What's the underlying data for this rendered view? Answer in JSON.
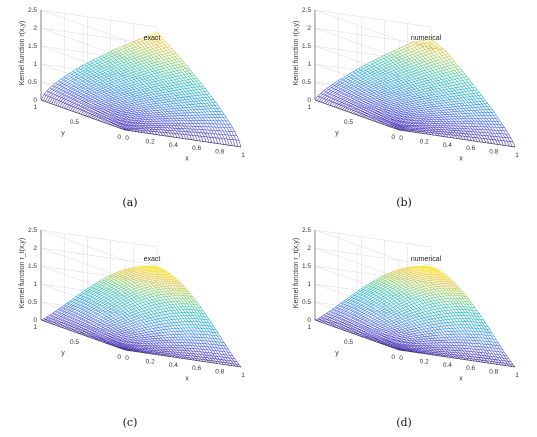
{
  "chart_data": [
    {
      "type": "surface",
      "caption": "(a)",
      "title": "exact",
      "ylabel": "Kernel function r(x,y)",
      "xlabel": "x",
      "ylabel_axis": "y",
      "xlim": [
        0,
        1
      ],
      "ylim": [
        0,
        1
      ],
      "zlim": [
        0,
        2.5
      ],
      "x_ticks": [
        "0",
        "0.2",
        "0.4",
        "0.6",
        "0.8",
        "1"
      ],
      "y_ticks": [
        "0",
        "0.5",
        "1"
      ],
      "z_ticks": [
        "0",
        "0.5",
        "1",
        "1.5",
        "2",
        "2.5"
      ],
      "peak": {
        "x": 1,
        "y": 1,
        "z": 2.35
      },
      "shape": "sharp"
    },
    {
      "type": "surface",
      "caption": "(b)",
      "title": "numerical",
      "ylabel": "Kernel function r(x,y)",
      "xlabel": "x",
      "ylabel_axis": "y",
      "xlim": [
        0,
        1
      ],
      "ylim": [
        0,
        1
      ],
      "zlim": [
        0,
        2.5
      ],
      "x_ticks": [
        "0",
        "0.2",
        "0.4",
        "0.6",
        "0.8",
        "1"
      ],
      "y_ticks": [
        "0",
        "0.5",
        "1"
      ],
      "z_ticks": [
        "0",
        "0.5",
        "1",
        "1.5",
        "2",
        "2.5"
      ],
      "peak": {
        "x": 1,
        "y": 1,
        "z": 2.3
      },
      "shape": "rounded"
    },
    {
      "type": "surface",
      "caption": "(c)",
      "title": "exact",
      "ylabel": "Kernel function r_t(x,y)",
      "xlabel": "x",
      "ylabel_axis": "y",
      "xlim": [
        0,
        1
      ],
      "ylim": [
        0,
        1
      ],
      "zlim": [
        0,
        2.5
      ],
      "x_ticks": [
        "0",
        "0.2",
        "0.4",
        "0.6",
        "0.8",
        "1"
      ],
      "y_ticks": [
        "0",
        "0.5",
        "1"
      ],
      "z_ticks": [
        "0",
        "0.5",
        "1",
        "1.5",
        "2",
        "2.5"
      ],
      "peak": {
        "x": 1,
        "y": 1,
        "z": 1.95
      },
      "shape": "dome"
    },
    {
      "type": "surface",
      "caption": "(d)",
      "title": "numerical",
      "ylabel": "Kernel function r_t(x,y)",
      "xlabel": "x",
      "ylabel_axis": "y",
      "xlim": [
        0,
        1
      ],
      "ylim": [
        0,
        1
      ],
      "zlim": [
        0,
        2.5
      ],
      "x_ticks": [
        "0",
        "0.2",
        "0.4",
        "0.6",
        "0.8",
        "1"
      ],
      "y_ticks": [
        "0",
        "0.5",
        "1"
      ],
      "z_ticks": [
        "0",
        "0.5",
        "1",
        "1.5",
        "2",
        "2.5"
      ],
      "peak": {
        "x": 1,
        "y": 1,
        "z": 1.95
      },
      "shape": "dome"
    }
  ]
}
